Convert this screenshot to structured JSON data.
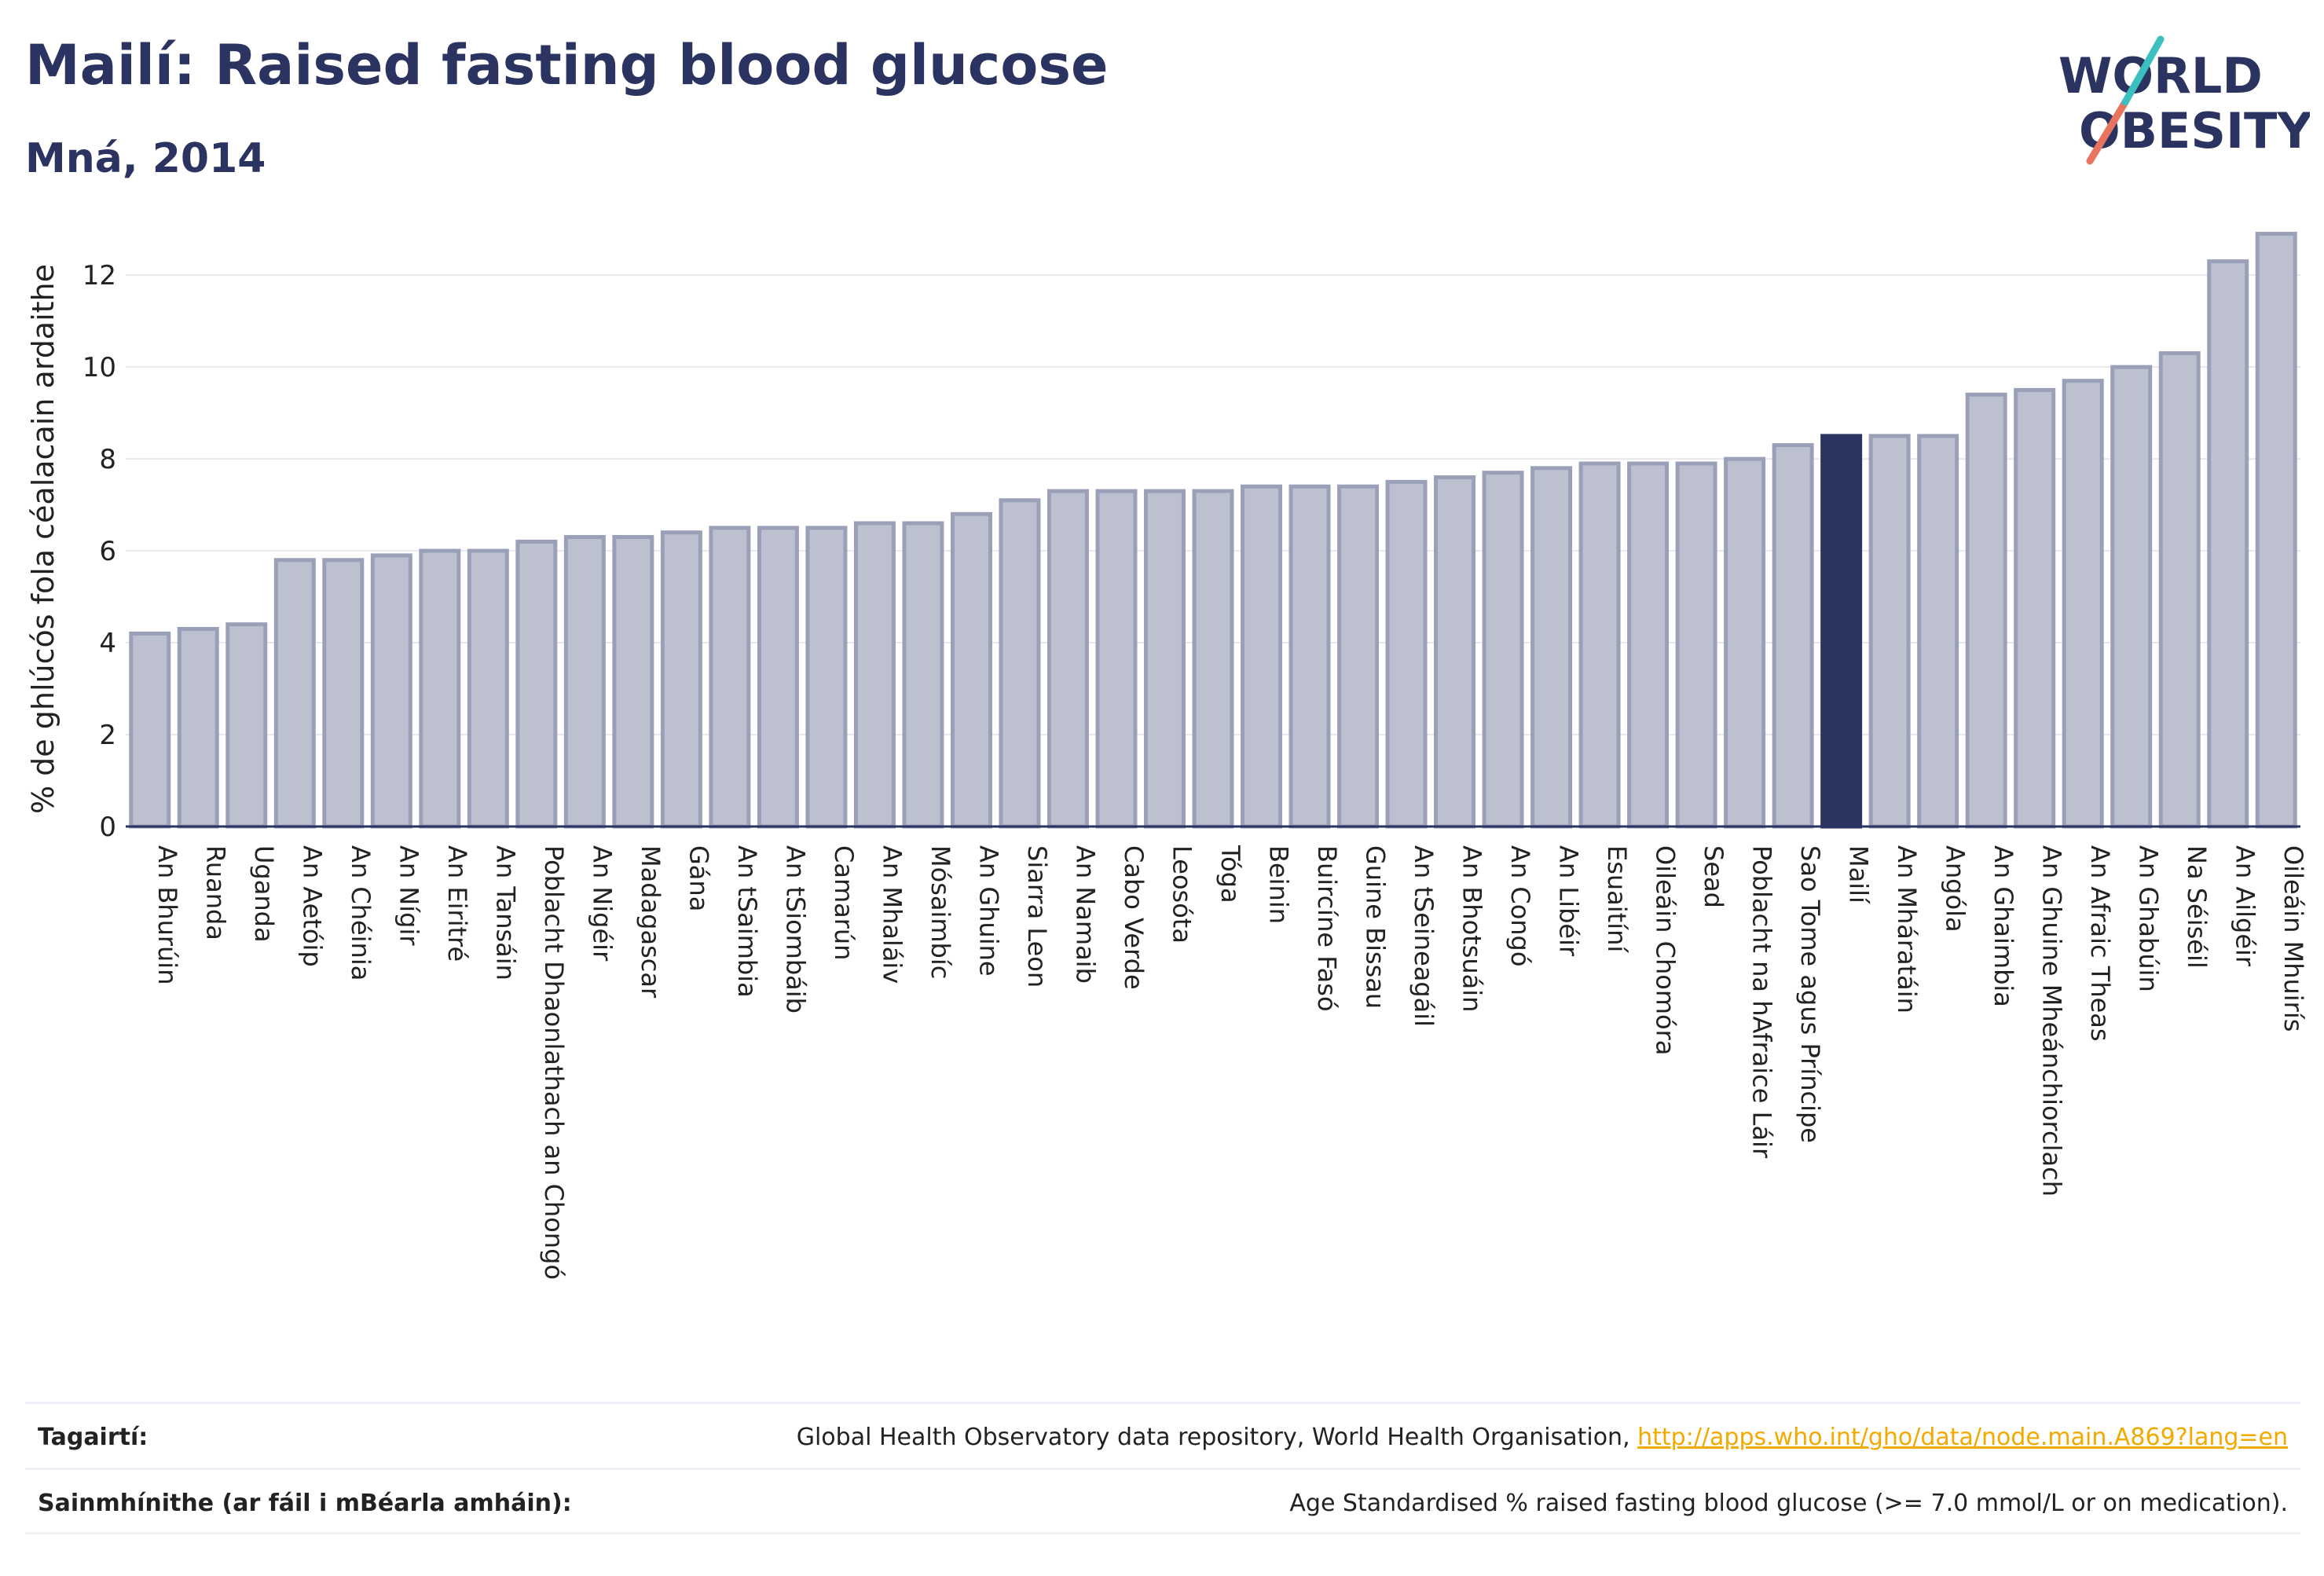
{
  "title": "Mailí: Raised fasting blood glucose",
  "subtitle": "Mná, 2014",
  "logo": {
    "line1": "WORLD",
    "line2": "OBESITY"
  },
  "chart_data": {
    "type": "bar",
    "ylabel": "% de ghlúcós fola céalacain ardaithe",
    "ylim": [
      0,
      13.2
    ],
    "yticks": [
      0,
      2,
      4,
      6,
      8,
      10,
      12
    ],
    "highlight": "Mailí",
    "colors": {
      "bar": "#bcc0cf",
      "bar_border": "#9aa0b8",
      "highlight": "#2b3460"
    },
    "categories": [
      "An Bhurúin",
      "Ruanda",
      "Uganda",
      "An Aetóip",
      "An Chéinia",
      "An Nígir",
      "An Eiritré",
      "An Tansáin",
      "Poblacht Dhaonlathach an Chongó",
      "An Nigéir",
      "Madagascar",
      "Gána",
      "An tSaimbia",
      "An tSiombáib",
      "Camarún",
      "An Mhaláiv",
      "Mósaimbíc",
      "An Ghuine",
      "Siarra Leon",
      "An Namaib",
      "Cabo Verde",
      "Leosóta",
      "Tóga",
      "Beinin",
      "Buircíne Fasó",
      "Guine Bissau",
      "An tSeineagáil",
      "An Bhotsuáin",
      "An Congó",
      "An Libéir",
      "Esuaitíní",
      "Oileáin Chomóra",
      "Sead",
      "Poblacht na hAfraice Láir",
      "Sao Tome agus Príncipe",
      "Mailí",
      "An Mháratáin",
      "Angóla",
      "An Ghaimbia",
      "An Ghuine Mheánchiorclach",
      "An Afraic Theas",
      "An Ghabúin",
      "Na Séiséil",
      "An Ailgéir",
      "Oileáin Mhuirís"
    ],
    "values": [
      4.2,
      4.3,
      4.4,
      5.8,
      5.8,
      5.9,
      6.0,
      6.0,
      6.2,
      6.3,
      6.3,
      6.4,
      6.5,
      6.5,
      6.5,
      6.6,
      6.6,
      6.8,
      7.1,
      7.3,
      7.3,
      7.3,
      7.3,
      7.4,
      7.4,
      7.4,
      7.5,
      7.6,
      7.7,
      7.8,
      7.9,
      7.9,
      7.9,
      8.0,
      8.3,
      8.5,
      8.5,
      8.5,
      9.4,
      9.5,
      9.7,
      10.0,
      10.3,
      12.3,
      12.9
    ]
  },
  "footer": {
    "references_label": "Tagairtí:",
    "references_text": "Global Health Observatory data repository, World Health Organisation, ",
    "references_link": "http://apps.who.int/gho/data/node.main.A869?lang=en",
    "definitions_label": "Sainmhínithe (ar fáil i mBéarla amháin):",
    "definitions_text": "Age Standardised % raised fasting blood glucose (>= 7.0 mmol/L or on medication)."
  }
}
